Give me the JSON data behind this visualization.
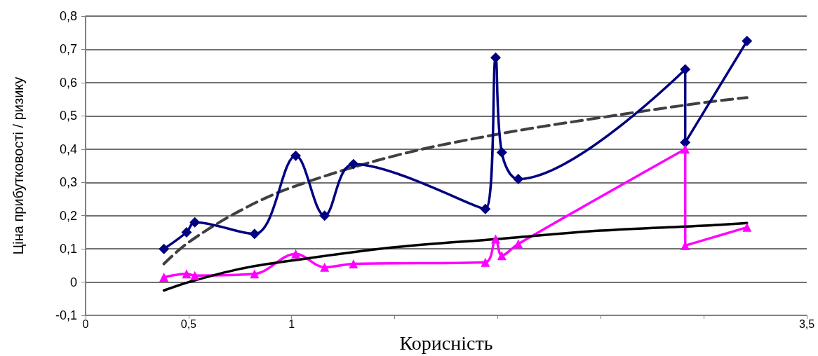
{
  "chart_data": {
    "type": "line",
    "xlabel": "Корисність",
    "ylabel": "Ціна прибутковості / ризику",
    "xlim": [
      0,
      3.5
    ],
    "xticks": [
      {
        "value": 0,
        "label": "0"
      },
      {
        "value": 0.5,
        "label": "0,5"
      },
      {
        "value": 1,
        "label": "1"
      },
      {
        "value": 1.5,
        "label": null
      },
      {
        "value": 2,
        "label": null
      },
      {
        "value": 2.5,
        "label": null
      },
      {
        "value": 3,
        "label": null
      },
      {
        "value": 3.5,
        "label": "3,5"
      }
    ],
    "ylim": [
      -0.1,
      0.8
    ],
    "yticks": [
      {
        "value": -0.1,
        "label": "-0,1"
      },
      {
        "value": 0,
        "label": "0"
      },
      {
        "value": 0.1,
        "label": "0,1"
      },
      {
        "value": 0.2,
        "label": "0,2"
      },
      {
        "value": 0.3,
        "label": "0,3"
      },
      {
        "value": 0.4,
        "label": "0,4"
      },
      {
        "value": 0.5,
        "label": "0,5"
      },
      {
        "value": 0.6,
        "label": "0,6"
      },
      {
        "value": 0.7,
        "label": "0,7"
      },
      {
        "value": 0.8,
        "label": "0,8"
      }
    ],
    "grid": "y",
    "series": [
      {
        "color": "#000080",
        "marker": "diamond",
        "line_style": "solid",
        "x": [
          0.38,
          0.49,
          0.53,
          0.82,
          1.02,
          1.16,
          1.3,
          1.94,
          1.99,
          2.02,
          2.1,
          2.91,
          2.91,
          3.21
        ],
        "values": [
          0.1,
          0.15,
          0.18,
          0.145,
          0.38,
          0.2,
          0.355,
          0.22,
          0.675,
          0.39,
          0.31,
          0.64,
          0.42,
          0.725
        ]
      },
      {
        "color": "#ff00ff",
        "marker": "triangle",
        "line_style": "solid",
        "x": [
          0.38,
          0.49,
          0.53,
          0.82,
          1.02,
          1.16,
          1.3,
          1.94,
          1.99,
          2.02,
          2.1,
          2.91,
          2.91,
          3.21
        ],
        "values": [
          0.015,
          0.025,
          0.02,
          0.025,
          0.085,
          0.045,
          0.055,
          0.06,
          0.13,
          0.08,
          0.115,
          0.4,
          0.11,
          0.165
        ]
      },
      {
        "color": "#404040",
        "marker": "none",
        "line_style": "dashed",
        "x": [
          0.38,
          0.5,
          0.75,
          1,
          1.5,
          2,
          2.5,
          3,
          3.21
        ],
        "values": [
          0.055,
          0.12,
          0.215,
          0.285,
          0.38,
          0.445,
          0.495,
          0.54,
          0.555
        ]
      },
      {
        "color": "#000000",
        "marker": "none",
        "line_style": "solid",
        "x": [
          0.38,
          0.5,
          0.75,
          1,
          1.5,
          2,
          2.5,
          3,
          3.21
        ],
        "values": [
          -0.025,
          0,
          0.04,
          0.065,
          0.105,
          0.13,
          0.155,
          0.17,
          0.178
        ]
      }
    ]
  }
}
